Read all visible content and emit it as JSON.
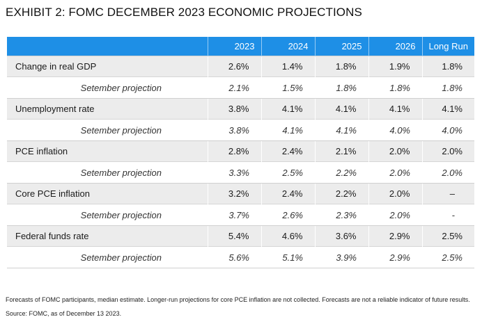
{
  "title": "EXHIBIT 2: FOMC DECEMBER 2023 ECONOMIC PROJECTIONS",
  "table": {
    "headers": [
      "",
      "2023",
      "2024",
      "2025",
      "2026",
      "Long Run"
    ],
    "rows": [
      {
        "label": "Change in real GDP",
        "values": [
          "2.6%",
          "1.4%",
          "1.8%",
          "1.9%",
          "1.8%"
        ],
        "sub_label": "Setember projection",
        "sub_values": [
          "2.1%",
          "1.5%",
          "1.8%",
          "1.8%",
          "1.8%"
        ]
      },
      {
        "label": "Unemployment rate",
        "values": [
          "3.8%",
          "4.1%",
          "4.1%",
          "4.1%",
          "4.1%"
        ],
        "sub_label": "Setember projection",
        "sub_values": [
          "3.8%",
          "4.1%",
          "4.1%",
          "4.0%",
          "4.0%"
        ]
      },
      {
        "label": "PCE inflation",
        "values": [
          "2.8%",
          "2.4%",
          "2.1%",
          "2.0%",
          "2.0%"
        ],
        "sub_label": "Setember projection",
        "sub_values": [
          "3.3%",
          "2.5%",
          "2.2%",
          "2.0%",
          "2.0%"
        ]
      },
      {
        "label": "Core PCE inflation",
        "values": [
          "3.2%",
          "2.4%",
          "2.2%",
          "2.0%",
          "–"
        ],
        "sub_label": "Setember projection",
        "sub_values": [
          "3.7%",
          "2.6%",
          "2.3%",
          "2.0%",
          "-"
        ]
      },
      {
        "label": "Federal funds rate",
        "values": [
          "5.4%",
          "4.6%",
          "3.6%",
          "2.9%",
          "2.5%"
        ],
        "sub_label": "Setember projection",
        "sub_values": [
          "5.6%",
          "5.1%",
          "3.9%",
          "2.9%",
          "2.5%"
        ]
      }
    ]
  },
  "footnote": "Forecasts of FOMC participants, median estimate. Longer-run projections for core PCE inflation are not collected. Forecasts are not a reliable indicator of future results.",
  "source": "Source: FOMC, as of December 13 2023.",
  "colors": {
    "header_bg": "#1e8fe6",
    "main_row_bg": "#ececec"
  }
}
